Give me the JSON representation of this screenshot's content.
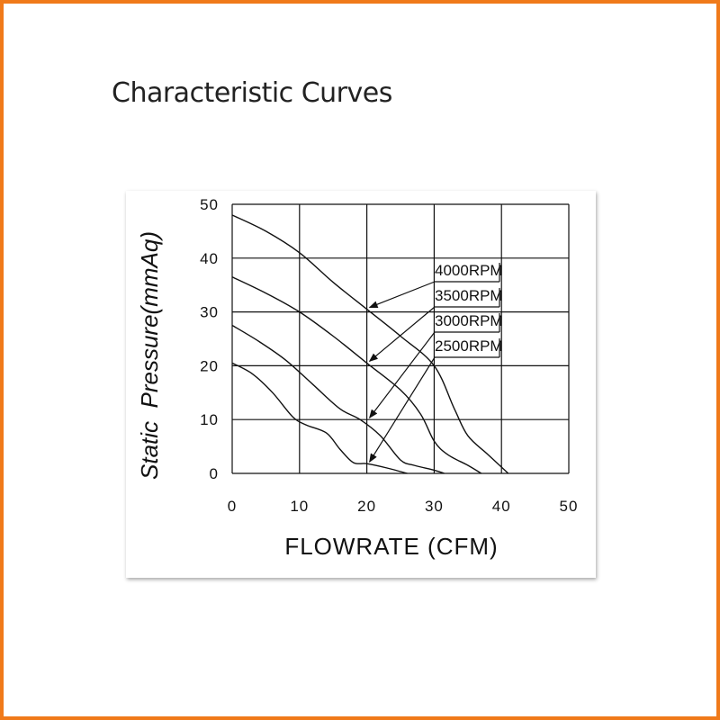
{
  "page": {
    "title": "Characteristic Curves"
  },
  "colors": {
    "frame": "#f07a1a",
    "ink": "#111111"
  },
  "chart_data": {
    "type": "line",
    "title": "",
    "xlabel": "FLOWRATE (CFM)",
    "ylabel": "Static  Pressure(mmAq)",
    "xlim": [
      0,
      50
    ],
    "ylim": [
      0,
      50
    ],
    "xticks": [
      0,
      10,
      20,
      30,
      40,
      50
    ],
    "yticks": [
      0,
      10,
      20,
      30,
      40,
      50
    ],
    "grid": true,
    "series": [
      {
        "name": "4000RPM",
        "label_text": "4000RPM",
        "x": [
          0,
          5,
          10,
          15,
          20,
          25,
          30,
          33,
          35,
          38,
          41
        ],
        "y": [
          48,
          45,
          41,
          35.5,
          30.5,
          25.5,
          20,
          12,
          7,
          3.5,
          0
        ]
      },
      {
        "name": "3500RPM",
        "label_text": "3500RPM",
        "x": [
          0,
          5,
          10,
          15,
          20,
          25,
          28,
          30,
          32,
          35,
          37
        ],
        "y": [
          36.5,
          33.5,
          30,
          25.5,
          20.5,
          15.5,
          11,
          6,
          3.5,
          1.5,
          0
        ]
      },
      {
        "name": "3000RPM",
        "label_text": "3000RPM",
        "x": [
          0,
          4,
          8,
          12,
          16,
          19,
          22,
          25,
          27,
          30,
          31.5
        ],
        "y": [
          27.5,
          24.5,
          21,
          16.5,
          12,
          10,
          7,
          2.5,
          1.5,
          0.6,
          0
        ]
      },
      {
        "name": "2500RPM",
        "label_text": "2500RPM",
        "x": [
          0,
          3,
          6,
          9,
          11,
          14,
          16,
          18,
          20,
          23,
          26
        ],
        "y": [
          20.5,
          18.5,
          15,
          10.5,
          9,
          7.5,
          4.5,
          2,
          1.8,
          1,
          0
        ]
      }
    ],
    "annotations": [
      {
        "series": "4000RPM",
        "arrow_target": [
          20,
          30.5
        ]
      },
      {
        "series": "3500RPM",
        "arrow_target": [
          20,
          20.5
        ]
      },
      {
        "series": "3000RPM",
        "arrow_target": [
          20,
          10
        ]
      },
      {
        "series": "2500RPM",
        "arrow_target": [
          20,
          1.8
        ]
      }
    ]
  }
}
